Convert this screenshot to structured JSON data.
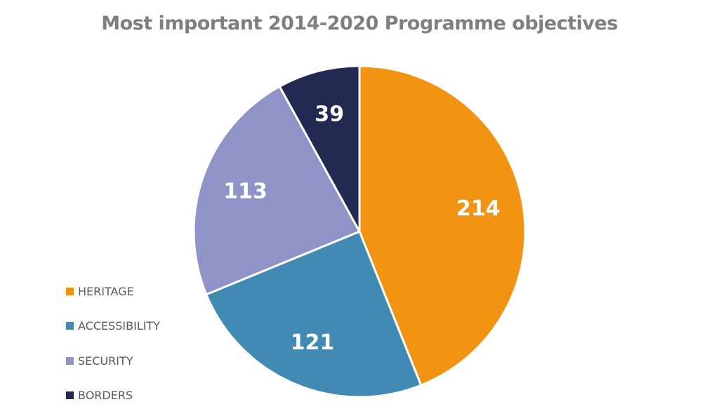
{
  "chart_data": {
    "type": "pie",
    "title": "Most important 2014-2020 Programme objectives",
    "categories": [
      "HERITAGE",
      "ACCESSIBILITY",
      "SECURITY",
      "BORDERS"
    ],
    "values": [
      214,
      121,
      113,
      39
    ],
    "colors": [
      "#f39313",
      "#418ab3",
      "#8f93c7",
      "#222a52"
    ],
    "start_angle_deg": 0,
    "direction": "clockwise",
    "legend_placement": "bottom-left",
    "data_labels": [
      "214",
      "121",
      "113",
      "39"
    ]
  }
}
